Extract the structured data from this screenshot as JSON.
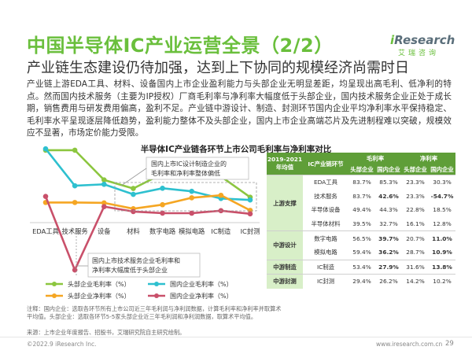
{
  "header": {
    "title": "中国半导体IC产业运营全景（2/2）",
    "subtitle": "产业链生态建设仍待加强，达到上下协同的规模经济尚需时日",
    "brand_en_main": "iResearch",
    "brand_cn": "艾瑞咨询"
  },
  "paragraph": "产业链上游EDA工具、材料、设备国内上市企业盈利能力与头部企业无明显差距，均呈现出高毛利、低净利的特点。然而国内技术服务（主要为IP授权）厂商毛利率与净利率大幅度低于头部企业，国内技术服务企业正处于成长期，销售费用与研发费用偏高，盈利不足。产业链中游设计、制造、封测环节国内企业平均净利率水平保持稳定、毛利率水平呈现逐层降低趋势，盈利能力整体不及头部企业，国内上市企业高端芯片及先进制程难以突破，规模效应不显著，市场定价能力受限。",
  "chart_title": "半导体IC产业链各环节上市公司毛利率与净利率对比",
  "chart_data": {
    "type": "line",
    "categories": [
      "EDA工具",
      "技术服务",
      "设备",
      "材料",
      "数字电路",
      "模拟电路",
      "IC制造",
      "IC封测"
    ],
    "series": [
      {
        "name": "头部企业毛利率（%）",
        "color": "#8cc63f",
        "values": [
          83.7,
          83.7,
          49.4,
          39.5,
          56.5,
          59.4,
          53.4,
          29.4
        ]
      },
      {
        "name": "国内企业毛利率（%）",
        "color": "#2ec0cf",
        "values": [
          85.3,
          42.6,
          44.3,
          32.7,
          39.7,
          36.2,
          27.9,
          26.2
        ]
      },
      {
        "name": "头部企业净利率（%）",
        "color": "#f5a623",
        "values": [
          23.3,
          23.3,
          22.8,
          16.1,
          20.7,
          28.7,
          31.6,
          14.2
        ]
      },
      {
        "name": "国内企业净利率（%）",
        "color": "#c9506a",
        "values": [
          30.3,
          -54.7,
          18.5,
          12.8,
          11.0,
          10.9,
          13.8,
          10.2
        ]
      }
    ],
    "annotations": [
      {
        "text": "国内上市IC设计制造企业的毛利率和净利率整体偏低"
      },
      {
        "text": "国内上市技术服务企业毛利率和净利率大幅度低于头部企业"
      }
    ]
  },
  "table": {
    "header_period": "2019-2021年均值",
    "header_stage": "IC产业链环节",
    "header_gross": "毛利率",
    "header_net": "净利率",
    "sub_head": "头部企业",
    "sub_domestic": "国内企业",
    "groups": [
      {
        "name": "上游支撑",
        "rows": [
          {
            "stage": "EDA工具",
            "g_head": "83.7%",
            "g_dom": "85.3%",
            "n_head": "23.3%",
            "n_dom": "30.3%",
            "g_dom_bold": false,
            "n_dom_bold": false
          },
          {
            "stage": "技术服务",
            "g_head": "83.7%",
            "g_dom": "42.6%",
            "n_head": "23.3%",
            "n_dom": "-54.7%",
            "g_dom_bold": true,
            "n_dom_bold": true
          },
          {
            "stage": "半导体设备",
            "g_head": "49.4%",
            "g_dom": "44.3%",
            "n_head": "22.8%",
            "n_dom": "18.5%",
            "g_dom_bold": false,
            "n_dom_bold": false
          },
          {
            "stage": "半导体材料",
            "g_head": "39.5%",
            "g_dom": "32.7%",
            "n_head": "16.1%",
            "n_dom": "12.8%",
            "g_dom_bold": false,
            "n_dom_bold": false
          }
        ]
      },
      {
        "name": "中游设计",
        "rows": [
          {
            "stage": "数字电路",
            "g_head": "56.5%",
            "g_dom": "39.7%",
            "n_head": "20.7%",
            "n_dom": "11.0%",
            "g_dom_bold": true,
            "n_dom_bold": true
          },
          {
            "stage": "模拟电路",
            "g_head": "59.4%",
            "g_dom": "36.2%",
            "n_head": "28.7%",
            "n_dom": "10.9%",
            "g_dom_bold": true,
            "n_dom_bold": true
          }
        ]
      },
      {
        "name": "中游制造",
        "rows": [
          {
            "stage": "IC制造",
            "g_head": "53.4%",
            "g_dom": "27.9%",
            "n_head": "31.6%",
            "n_dom": "13.8%",
            "g_dom_bold": true,
            "n_dom_bold": true
          }
        ]
      },
      {
        "name": "中游封测",
        "rows": [
          {
            "stage": "IC封测",
            "g_head": "29.4%",
            "g_dom": "26.2%",
            "n_head": "14.2%",
            "n_dom": "10.2%",
            "g_dom_bold": false,
            "n_dom_bold": false
          }
        ]
      }
    ]
  },
  "notes": "注释：国内企业：选取各环节所有上市公司近三年毛利润与净利润数据，计算毛利率和净利率并取算术平均值。头部企业：选取各环节5-5家头部企业近三年毛利润和净利润数据，取算术平均值。",
  "source": "来源：上市企业年度报告、招股书，艾瑞研究院自主研究绘制。",
  "footer": {
    "copyright": "©2022.9 iResearch Inc.",
    "url": "www.iresearch.com.cn",
    "page": "29"
  }
}
